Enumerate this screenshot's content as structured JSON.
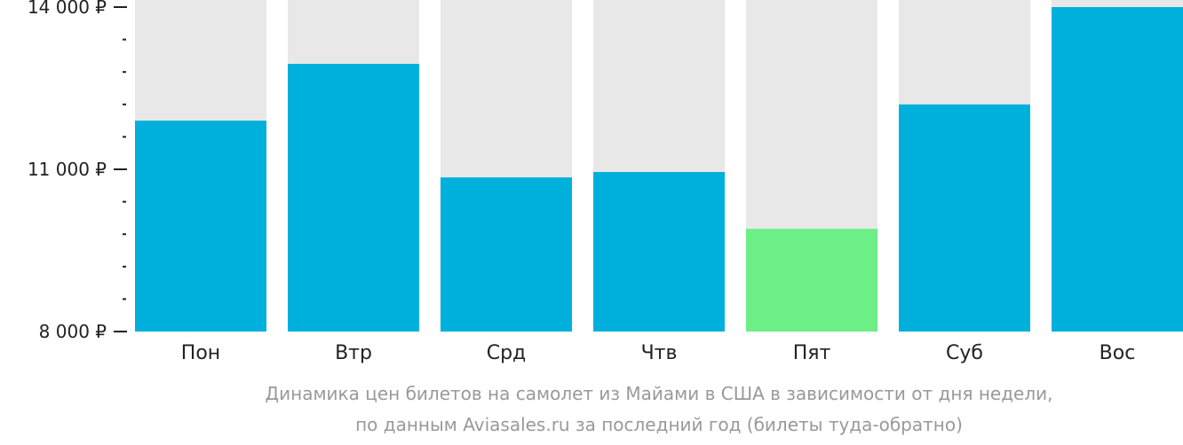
{
  "chart_data": {
    "type": "bar",
    "categories": [
      "Пон",
      "Втр",
      "Срд",
      "Чтв",
      "Пят",
      "Суб",
      "Вос"
    ],
    "values": [
      11900,
      12950,
      10850,
      10950,
      9900,
      12200,
      14000
    ],
    "highlight_index": 4,
    "ylim": [
      8000,
      14000
    ],
    "yticks": [
      {
        "value": 14000,
        "label": "14 000 ₽"
      },
      {
        "value": 11000,
        "label": "11 000 ₽"
      },
      {
        "value": 8000,
        "label": "8 000 ₽"
      }
    ],
    "minor_tick_step": 600,
    "colors": {
      "bar": "#00b0dc",
      "highlight": "#6bef86",
      "background_bar": "#e8e8e8",
      "axis": "#222222"
    },
    "grid": false,
    "legend": "none"
  },
  "caption": {
    "line1": "Динамика цен билетов на самолет из Майами в США в зависимости от дня недели,",
    "line2": "по данным Aviasales.ru за последний год (билеты туда-обратно)"
  }
}
